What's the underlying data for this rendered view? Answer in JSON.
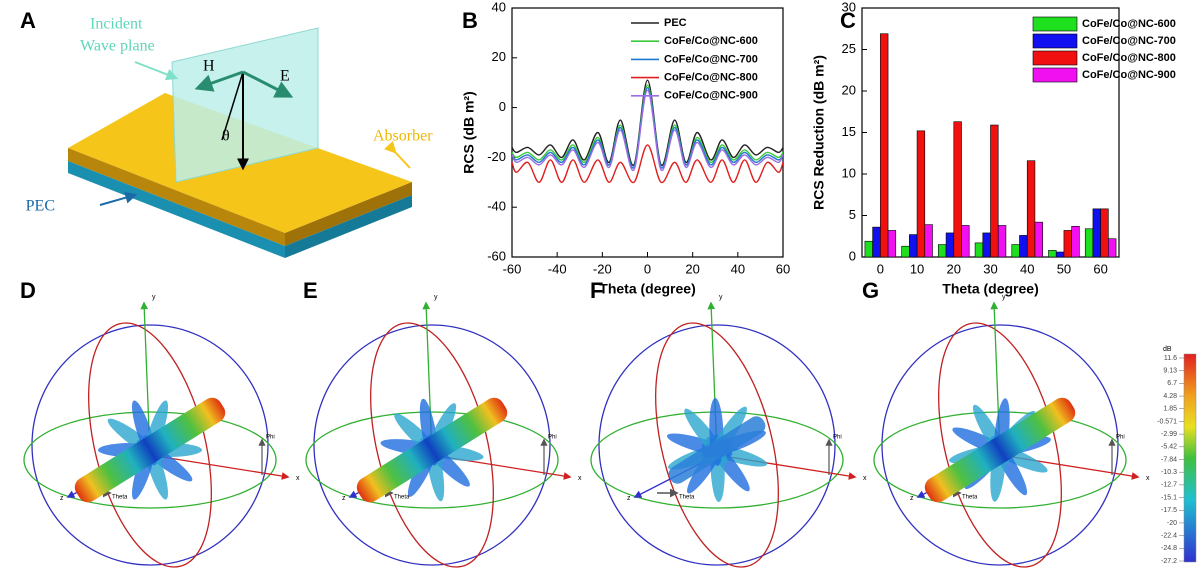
{
  "panel_labels": [
    "A",
    "B",
    "C",
    "D",
    "E",
    "F",
    "G"
  ],
  "diagram": {
    "incident": "Incident",
    "wave_plane": "Wave plane",
    "h": "H",
    "e": "E",
    "theta": "θ",
    "absorber": "Absorber",
    "pec": "PEC"
  },
  "chart_data": [
    {
      "type": "line",
      "xlabel": "Theta (degree)",
      "ylabel": "RCS (dB m²)",
      "x": [
        -60,
        -58,
        -53,
        -48,
        -43,
        -38,
        -33,
        -28,
        -22,
        -17,
        -12,
        -6,
        0,
        6,
        12,
        17,
        22,
        28,
        33,
        38,
        43,
        48,
        53,
        58,
        60
      ],
      "xlim": [
        -60,
        60
      ],
      "xticks": [
        -60,
        -40,
        -20,
        0,
        20,
        40,
        60
      ],
      "ylim": [
        -60,
        40
      ],
      "yticks": [
        -60,
        -40,
        -20,
        0,
        20,
        40
      ],
      "legend": "upper right",
      "series": [
        {
          "name": "PEC",
          "color": "#222222",
          "values": [
            -16,
            -18,
            -16,
            -19,
            -15,
            -20,
            -13,
            -21,
            -10,
            -22,
            -5,
            -23,
            11,
            -23,
            -5,
            -22,
            -10,
            -21,
            -13,
            -20,
            -15,
            -19,
            -16,
            -18,
            -16
          ]
        },
        {
          "name": "CoFe/Co@NC-600",
          "color": "#3ccb3c",
          "values": [
            -18,
            -20,
            -18,
            -21,
            -17,
            -21,
            -15,
            -22,
            -12,
            -23,
            -7,
            -24,
            9,
            -24,
            -7,
            -23,
            -12,
            -22,
            -15,
            -21,
            -17,
            -21,
            -18,
            -20,
            -18
          ]
        },
        {
          "name": "CoFe/Co@NC-700",
          "color": "#1f78d1",
          "values": [
            -19,
            -21,
            -19,
            -22,
            -18,
            -22,
            -16,
            -23,
            -13,
            -23,
            -8,
            -24,
            8,
            -24,
            -8,
            -23,
            -13,
            -23,
            -16,
            -22,
            -18,
            -22,
            -19,
            -21,
            -19
          ]
        },
        {
          "name": "CoFe/Co@NC-800",
          "color": "#e02020",
          "values": [
            -22,
            -26,
            -22,
            -30,
            -21,
            -30,
            -21,
            -30,
            -21,
            -30,
            -22,
            -30,
            -15,
            -30,
            -22,
            -30,
            -21,
            -30,
            -21,
            -30,
            -21,
            -30,
            -22,
            -26,
            -22
          ]
        },
        {
          "name": "CoFe/Co@NC-900",
          "color": "#9b6ee8",
          "values": [
            -19,
            -22,
            -20,
            -23,
            -19,
            -23,
            -17,
            -24,
            -14,
            -24,
            -9,
            -25,
            7,
            -25,
            -9,
            -24,
            -14,
            -24,
            -17,
            -23,
            -19,
            -23,
            -20,
            -22,
            -19
          ]
        }
      ]
    },
    {
      "type": "bar",
      "xlabel": "Theta (degree)",
      "ylabel": "RCS Reduction (dB m²)",
      "categories": [
        0,
        10,
        20,
        30,
        40,
        50,
        60
      ],
      "ylim": [
        0,
        30
      ],
      "yticks": [
        0,
        5,
        10,
        15,
        20,
        25,
        30
      ],
      "legend": "upper right",
      "series": [
        {
          "name": "CoFe/Co@NC-600",
          "color": "#1ee01e",
          "values": [
            1.9,
            1.3,
            1.5,
            1.7,
            1.5,
            0.8,
            3.4
          ]
        },
        {
          "name": "CoFe/Co@NC-700",
          "color": "#1010f0",
          "values": [
            3.6,
            2.7,
            2.9,
            2.9,
            2.6,
            0.6,
            5.8
          ]
        },
        {
          "name": "CoFe/Co@NC-800",
          "color": "#f01010",
          "values": [
            26.9,
            15.2,
            16.3,
            15.9,
            11.6,
            3.2,
            5.8
          ]
        },
        {
          "name": "CoFe/Co@NC-900",
          "color": "#f010f0",
          "values": [
            3.2,
            3.9,
            3.8,
            3.8,
            4.2,
            3.7,
            2.2
          ]
        }
      ]
    }
  ],
  "patterns": {
    "x": "x",
    "y": "y",
    "z": "z",
    "theta": "Theta",
    "phi": "Phi"
  },
  "colorbar": {
    "title": "dB",
    "labels": [
      "11.6",
      "9.13",
      "6.7",
      "4.28",
      "1.85",
      "-0.571",
      "-2.99",
      "-5.42",
      "-7.84",
      "-10.3",
      "-12.7",
      "-15.1",
      "-17.5",
      "-20",
      "-22.4",
      "-24.8",
      "-27.2"
    ]
  }
}
